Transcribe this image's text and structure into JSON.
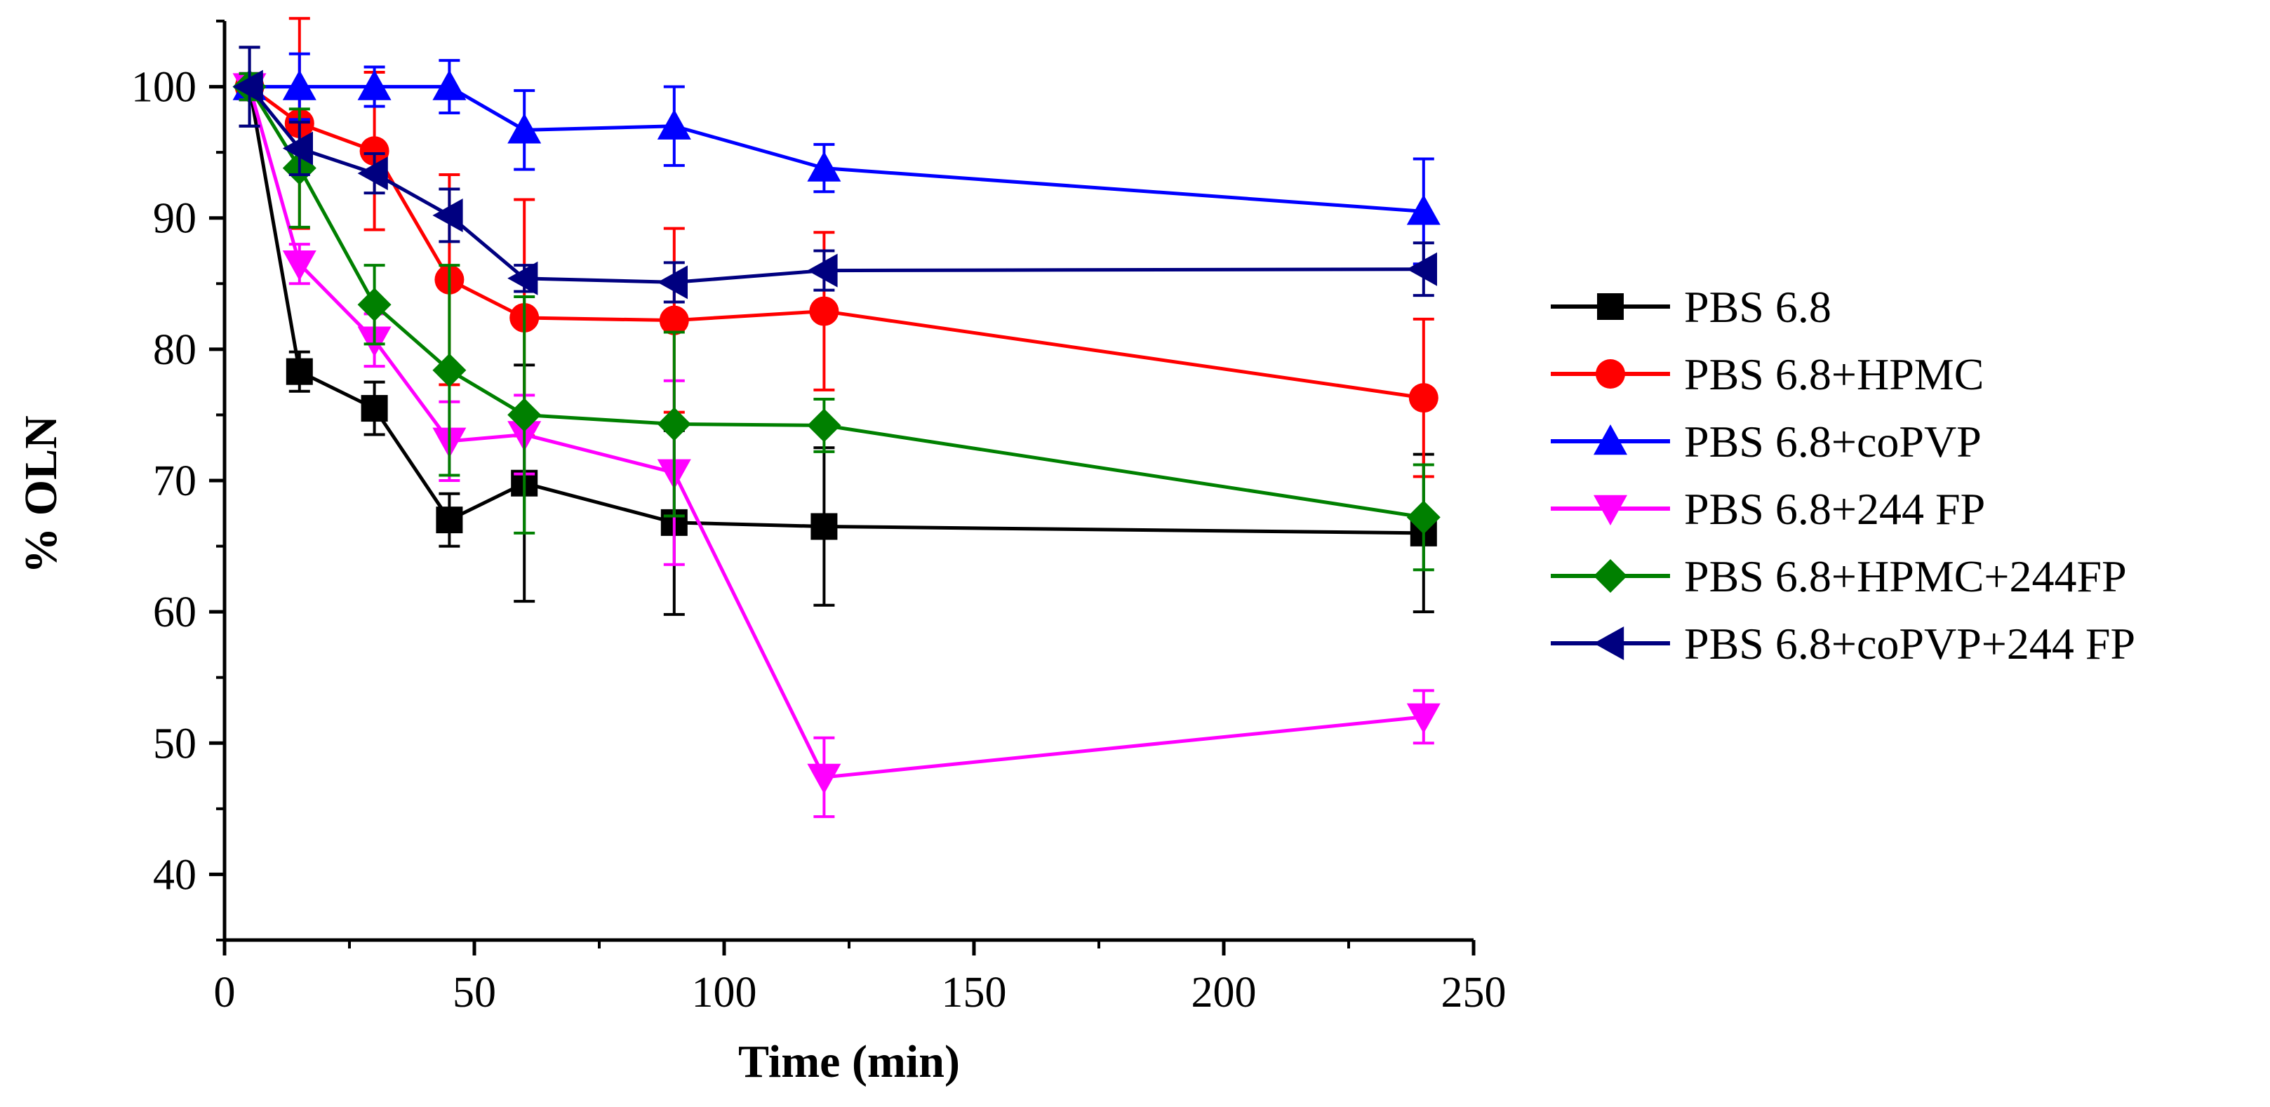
{
  "chart_data": {
    "type": "line",
    "title": "",
    "xlabel": "Time (min)",
    "ylabel": "% OLN",
    "xlim": [
      0,
      250
    ],
    "ylim": [
      35,
      105
    ],
    "xticks": [
      0,
      50,
      100,
      150,
      200,
      250
    ],
    "yticks": [
      40,
      50,
      60,
      70,
      80,
      90,
      100
    ],
    "grid": false,
    "legend_position": "right",
    "x": [
      5,
      15,
      30,
      45,
      60,
      90,
      120,
      240
    ],
    "series": [
      {
        "name": "PBS 6.8",
        "color": "#000000",
        "marker": "square",
        "values": [
          100,
          78.3,
          75.5,
          67.0,
          69.8,
          66.8,
          66.5,
          66.0
        ],
        "errors": [
          3.0,
          1.5,
          2.0,
          2.0,
          9.0,
          7.0,
          6.0,
          6.0
        ]
      },
      {
        "name": "PBS 6.8+HPMC",
        "color": "#ff0000",
        "marker": "circle",
        "values": [
          100,
          97.2,
          95.1,
          85.3,
          82.4,
          82.2,
          82.9,
          76.3
        ],
        "errors": [
          1.0,
          8.0,
          6.0,
          8.0,
          9.0,
          7.0,
          6.0,
          6.0
        ]
      },
      {
        "name": "PBS 6.8+coPVP",
        "color": "#0000ff",
        "marker": "triangle-up",
        "values": [
          100,
          100,
          100,
          100,
          96.7,
          97.0,
          93.8,
          90.5
        ],
        "errors": [
          1.0,
          2.5,
          1.5,
          2.0,
          3.0,
          3.0,
          1.8,
          4.0
        ]
      },
      {
        "name": "PBS 6.8+244 FP",
        "color": "#ff00ff",
        "marker": "triangle-down",
        "values": [
          100,
          86.5,
          80.7,
          73.0,
          73.5,
          70.6,
          47.4,
          52.0
        ],
        "errors": [
          1.0,
          1.5,
          2.0,
          3.0,
          3.0,
          7.0,
          3.0,
          2.0
        ]
      },
      {
        "name": "PBS 6.8+HPMC+244FP",
        "color": "#008000",
        "marker": "diamond",
        "values": [
          100,
          93.8,
          83.4,
          78.4,
          75.0,
          74.3,
          74.2,
          67.2
        ],
        "errors": [
          1.0,
          4.5,
          3.0,
          8.0,
          9.0,
          7.0,
          2.0,
          4.0
        ]
      },
      {
        "name": "PBS 6.8+coPVP+244 FP",
        "color": "#000080",
        "marker": "triangle-left",
        "values": [
          100,
          95.3,
          93.4,
          90.2,
          85.4,
          85.1,
          86.0,
          86.1
        ],
        "errors": [
          3.0,
          2.0,
          1.5,
          2.0,
          1.0,
          1.5,
          1.5,
          2.0
        ]
      }
    ]
  }
}
